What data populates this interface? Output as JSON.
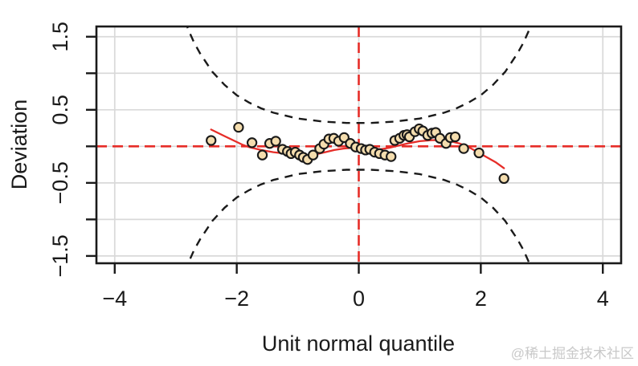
{
  "watermark": {
    "text": "@稀土掘金技术社区",
    "color": "#c9c9c9"
  },
  "chart_data": {
    "type": "scatter",
    "title": "",
    "xlabel": "Unit normal quantile",
    "ylabel": "Deviation",
    "xlim": [
      -4.3,
      4.3
    ],
    "ylim": [
      -1.6,
      1.64
    ],
    "grid": true,
    "legend": "none",
    "x_ticks": {
      "values": [
        -4,
        -2,
        0,
        2,
        4
      ],
      "labels": [
        "−4",
        "−2",
        "0",
        "2",
        "4"
      ]
    },
    "y_ticks": {
      "values": [
        -1.5,
        -1,
        -0.5,
        0,
        0.5,
        1,
        1.5
      ],
      "labels": [
        "−1.5",
        "",
        "−0.5",
        "",
        "0.5",
        "",
        "1.5"
      ]
    },
    "colors": {
      "background": "#ffffff",
      "axis": "#1a1a1a",
      "grid": "#d9d9d9",
      "band": "#1a1a1a",
      "reference": "#e62d28",
      "loess": "#e62d28",
      "point_fill": "#f4ddae",
      "point_stroke": "#1a1a1a"
    },
    "reference_lines": {
      "horizontal_y": 0,
      "vertical_x": 0,
      "style": "dashed"
    },
    "points": [
      [
        -2.42,
        0.08
      ],
      [
        -1.97,
        0.26
      ],
      [
        -1.75,
        0.05
      ],
      [
        -1.58,
        -0.12
      ],
      [
        -1.46,
        0.04
      ],
      [
        -1.36,
        0.07
      ],
      [
        -1.25,
        -0.04
      ],
      [
        -1.17,
        -0.07
      ],
      [
        -1.11,
        -0.1
      ],
      [
        -1.04,
        -0.08
      ],
      [
        -0.97,
        -0.12
      ],
      [
        -0.91,
        -0.15
      ],
      [
        -0.84,
        -0.18
      ],
      [
        -0.75,
        -0.12
      ],
      [
        -0.64,
        -0.03
      ],
      [
        -0.57,
        0.03
      ],
      [
        -0.49,
        0.1
      ],
      [
        -0.41,
        0.11
      ],
      [
        -0.33,
        0.07
      ],
      [
        -0.24,
        0.12
      ],
      [
        -0.14,
        0.04
      ],
      [
        -0.05,
        -0.01
      ],
      [
        0.04,
        -0.03
      ],
      [
        0.11,
        -0.05
      ],
      [
        0.18,
        -0.04
      ],
      [
        0.26,
        -0.08
      ],
      [
        0.34,
        -0.1
      ],
      [
        0.43,
        -0.12
      ],
      [
        0.53,
        -0.14
      ],
      [
        0.59,
        0.08
      ],
      [
        0.67,
        0.11
      ],
      [
        0.74,
        0.15
      ],
      [
        0.79,
        0.16
      ],
      [
        0.83,
        0.13
      ],
      [
        0.92,
        0.2
      ],
      [
        0.99,
        0.24
      ],
      [
        1.05,
        0.21
      ],
      [
        1.13,
        0.15
      ],
      [
        1.2,
        0.18
      ],
      [
        1.26,
        0.19
      ],
      [
        1.33,
        0.11
      ],
      [
        1.43,
        0.04
      ],
      [
        1.5,
        0.12
      ],
      [
        1.58,
        0.13
      ],
      [
        1.72,
        -0.03
      ],
      [
        1.97,
        -0.09
      ],
      [
        2.38,
        -0.44
      ]
    ],
    "loess_curve": [
      [
        -2.42,
        0.23
      ],
      [
        -2.2,
        0.14
      ],
      [
        -2.0,
        0.06
      ],
      [
        -1.9,
        0.02
      ],
      [
        -1.8,
        -0.01
      ],
      [
        -1.6,
        -0.05
      ],
      [
        -1.4,
        -0.08
      ],
      [
        -1.2,
        -0.1
      ],
      [
        -1.0,
        -0.12
      ],
      [
        -0.85,
        -0.13
      ],
      [
        -0.7,
        -0.11
      ],
      [
        -0.55,
        -0.08
      ],
      [
        -0.4,
        -0.05
      ],
      [
        -0.25,
        -0.03
      ],
      [
        -0.1,
        -0.02
      ],
      [
        0.05,
        -0.02
      ],
      [
        0.2,
        -0.03
      ],
      [
        0.35,
        -0.04
      ],
      [
        0.5,
        -0.02
      ],
      [
        0.65,
        0.01
      ],
      [
        0.8,
        0.04
      ],
      [
        1.0,
        0.07
      ],
      [
        1.2,
        0.085
      ],
      [
        1.35,
        0.085
      ],
      [
        1.5,
        0.07
      ],
      [
        1.65,
        0.04
      ],
      [
        1.8,
        -0.01
      ],
      [
        1.95,
        -0.08
      ],
      [
        2.1,
        -0.15
      ],
      [
        2.25,
        -0.22
      ],
      [
        2.38,
        -0.3
      ]
    ],
    "confidence_band": {
      "description": "95% pointwise confidence band, mirrored about y=0",
      "x": [
        -2.85,
        -2.78,
        -2.7,
        -2.6,
        -2.4,
        -2.2,
        -2.0,
        -1.8,
        -1.6,
        -1.4,
        -1.2,
        -1.0,
        -0.8,
        -0.6,
        -0.4,
        -0.2,
        0,
        0.2,
        0.4,
        0.6,
        0.8,
        1.0,
        1.2,
        1.4,
        1.6,
        1.8,
        2.0,
        2.2,
        2.4,
        2.6,
        2.7,
        2.78,
        2.85
      ],
      "y_upper": [
        1.72,
        1.57,
        1.42,
        1.27,
        1.02,
        0.84,
        0.7,
        0.6,
        0.52,
        0.46,
        0.42,
        0.38,
        0.36,
        0.34,
        0.33,
        0.32,
        0.32,
        0.32,
        0.33,
        0.34,
        0.36,
        0.38,
        0.42,
        0.46,
        0.52,
        0.6,
        0.7,
        0.84,
        1.02,
        1.27,
        1.42,
        1.57,
        1.72
      ]
    }
  }
}
